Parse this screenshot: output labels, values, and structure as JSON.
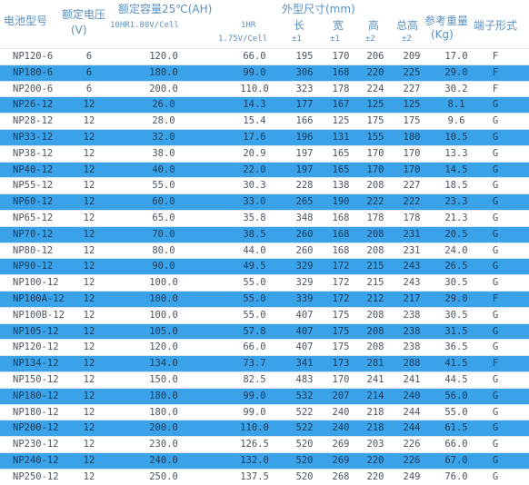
{
  "header": {
    "model": "电池型号",
    "voltage": "额定电压",
    "voltage_unit": "(V)",
    "capacity": "额定容量25℃(AH)",
    "capacity_10hr": "10HR1.80V/Cell",
    "capacity_1hr_a": "1HR",
    "capacity_1hr_b": "1.75V/Cell",
    "dimensions": "外型尺寸(mm)",
    "length": "长",
    "length_tol": "±1",
    "width": "宽",
    "width_tol": "±1",
    "height": "高",
    "height_tol": "±2",
    "total_height": "总高",
    "total_height_tol": "±2",
    "weight": "参考重量",
    "weight_unit": "(Kg)",
    "terminal": "端子形式"
  },
  "rows": [
    [
      "NP120-6",
      "6",
      "120.0",
      "66.0",
      "195",
      "170",
      "206",
      "209",
      "17.0",
      "F"
    ],
    [
      "NP180-6",
      "6",
      "180.0",
      "99.0",
      "306",
      "168",
      "220",
      "225",
      "29.0",
      "F"
    ],
    [
      "NP200-6",
      "6",
      "200.0",
      "110.0",
      "323",
      "178",
      "224",
      "227",
      "30.2",
      "F"
    ],
    [
      "NP26-12",
      "12",
      "26.0",
      "14.3",
      "177",
      "167",
      "125",
      "125",
      "8.1",
      "G"
    ],
    [
      "NP28-12",
      "12",
      "28.0",
      "15.4",
      "166",
      "125",
      "175",
      "175",
      "9.6",
      "G"
    ],
    [
      "NP33-12",
      "12",
      "32.0",
      "17.6",
      "196",
      "131",
      "155",
      "180",
      "10.5",
      "G"
    ],
    [
      "NP38-12",
      "12",
      "38.0",
      "20.9",
      "197",
      "165",
      "170",
      "170",
      "13.3",
      "G"
    ],
    [
      "NP40-12",
      "12",
      "40.0",
      "22.0",
      "197",
      "165",
      "170",
      "170",
      "14.5",
      "G"
    ],
    [
      "NP55-12",
      "12",
      "55.0",
      "30.3",
      "228",
      "138",
      "208",
      "227",
      "18.5",
      "G"
    ],
    [
      "NP60-12",
      "12",
      "60.0",
      "33.0",
      "265",
      "190",
      "222",
      "222",
      "23.3",
      "G"
    ],
    [
      "NP65-12",
      "12",
      "65.0",
      "35.8",
      "348",
      "168",
      "178",
      "178",
      "21.3",
      "G"
    ],
    [
      "NP70-12",
      "12",
      "70.0",
      "38.5",
      "260",
      "168",
      "208",
      "231",
      "20.5",
      "G"
    ],
    [
      "NP80-12",
      "12",
      "80.0",
      "44.0",
      "260",
      "168",
      "208",
      "231",
      "24.0",
      "G"
    ],
    [
      "NP90-12",
      "12",
      "90.0",
      "49.5",
      "329",
      "172",
      "215",
      "243",
      "26.5",
      "G"
    ],
    [
      "NP100-12",
      "12",
      "100.0",
      "55.0",
      "329",
      "172",
      "215",
      "243",
      "30.5",
      "G"
    ],
    [
      "NP100A-12",
      "12",
      "100.0",
      "55.0",
      "339",
      "172",
      "212",
      "217",
      "29.0",
      "F"
    ],
    [
      "NP100B-12",
      "12",
      "100.0",
      "55.0",
      "407",
      "175",
      "208",
      "238",
      "30.5",
      "G"
    ],
    [
      "NP105-12",
      "12",
      "105.0",
      "57.8",
      "407",
      "175",
      "208",
      "238",
      "31.5",
      "G"
    ],
    [
      "NP120-12",
      "12",
      "120.0",
      "66.0",
      "407",
      "175",
      "208",
      "238",
      "36.5",
      "G"
    ],
    [
      "NP134-12",
      "12",
      "134.0",
      "73.7",
      "341",
      "173",
      "281",
      "288",
      "41.5",
      "F"
    ],
    [
      "NP150-12",
      "12",
      "150.0",
      "82.5",
      "483",
      "170",
      "241",
      "241",
      "44.5",
      "G"
    ],
    [
      "NP180-12",
      "12",
      "180.0",
      "99.0",
      "532",
      "207",
      "214",
      "240",
      "56.0",
      "G"
    ],
    [
      "NP180-12",
      "12",
      "180.0",
      "99.0",
      "522",
      "240",
      "218",
      "244",
      "55.0",
      "G"
    ],
    [
      "NP200-12",
      "12",
      "200.0",
      "110.0",
      "522",
      "240",
      "218",
      "244",
      "61.5",
      "G"
    ],
    [
      "NP230-12",
      "12",
      "230.0",
      "126.5",
      "520",
      "269",
      "203",
      "226",
      "66.0",
      "G"
    ],
    [
      "NP240-12",
      "12",
      "240.0",
      "132.0",
      "520",
      "269",
      "220",
      "226",
      "67.0",
      "G"
    ],
    [
      "NP250-12",
      "12",
      "250.0",
      "137.5",
      "520",
      "268",
      "220",
      "249",
      "76.0",
      "G"
    ]
  ]
}
